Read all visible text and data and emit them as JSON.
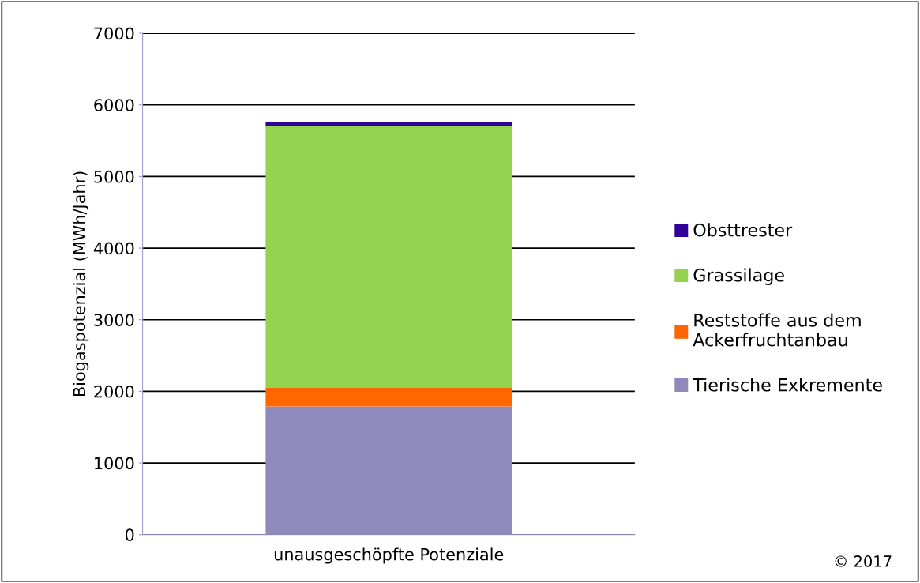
{
  "chart_data": {
    "type": "bar",
    "stacked": true,
    "categories": [
      "unausgeschöpfte Potenziale"
    ],
    "ylabel": "Biogaspotenzial (MWh/Jahr)",
    "ylim": [
      0,
      7000
    ],
    "yticks": [
      0,
      1000,
      2000,
      3000,
      4000,
      5000,
      6000,
      7000
    ],
    "grid": "y",
    "legend": "right",
    "series": [
      {
        "name": "Tierische Exkremente",
        "color": "#9089bb",
        "values": [
          1790
        ]
      },
      {
        "name": "Reststoffe aus dem\nAckerfruchtanbau",
        "color": "#ff6600",
        "values": [
          260
        ]
      },
      {
        "name": "Grassilage",
        "color": "#94d250",
        "values": [
          3660
        ]
      },
      {
        "name": "Obsttrester",
        "color": "#2e0099",
        "values": [
          45
        ]
      }
    ],
    "annotations": [
      "© 2017"
    ]
  }
}
